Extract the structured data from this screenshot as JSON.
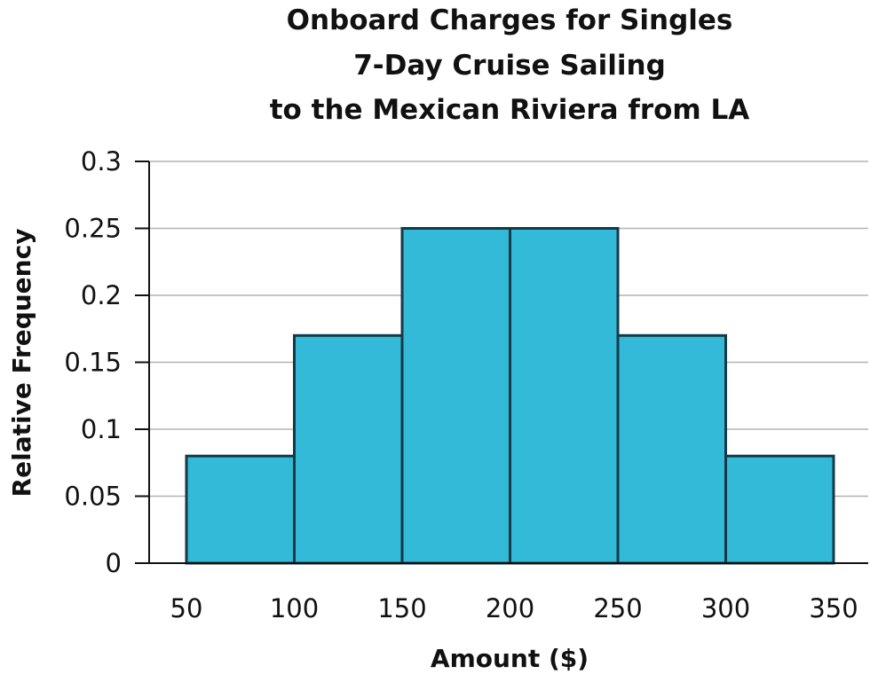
{
  "colors": {
    "bar_fill": "#33BAD9",
    "bar_stroke": "#153A47",
    "grid": "#B3B3B3",
    "axis": "#111111"
  },
  "chart_data": {
    "type": "bar",
    "title_lines": [
      "Onboard Charges for Singles",
      "7-Day Cruise Sailing",
      "to the Mexican Riviera from LA"
    ],
    "xlabel": "Amount ($)",
    "ylabel": "Relative Frequency",
    "bins": [
      [
        50,
        100
      ],
      [
        100,
        150
      ],
      [
        150,
        200
      ],
      [
        200,
        250
      ],
      [
        250,
        300
      ],
      [
        300,
        350
      ]
    ],
    "values": [
      0.08,
      0.17,
      0.25,
      0.25,
      0.17,
      0.08
    ],
    "xlim": [
      50,
      350
    ],
    "ylim": [
      0,
      0.3
    ],
    "x_ticks": [
      50,
      100,
      150,
      200,
      250,
      300,
      350
    ],
    "x_tick_labels": [
      "50",
      "100",
      "150",
      "200",
      "250",
      "300",
      "350"
    ],
    "y_ticks": [
      0,
      0.05,
      0.1,
      0.15,
      0.2,
      0.25,
      0.3
    ],
    "y_tick_labels": [
      "0",
      "0.05",
      "0.1",
      "0.15",
      "0.2",
      "0.25",
      "0.3"
    ],
    "grid": true
  }
}
